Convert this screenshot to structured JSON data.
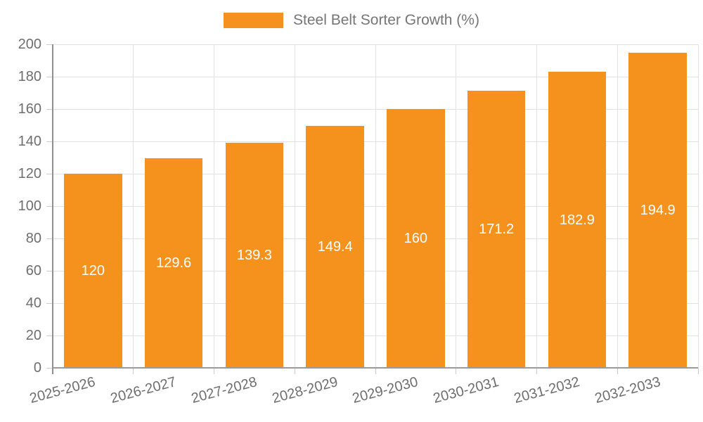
{
  "legend": {
    "label": "Steel Belt Sorter Growth (%)"
  },
  "chart_data": {
    "type": "bar",
    "title": "Steel Belt Sorter Growth (%)",
    "categories": [
      "2025-2026",
      "2026-2027",
      "2027-2028",
      "2028-2029",
      "2029-2030",
      "2030-2031",
      "2031-2032",
      "2032-2033"
    ],
    "series": [
      {
        "name": "Steel Belt Sorter Growth (%)",
        "values": [
          120,
          129.6,
          139.3,
          149.4,
          160,
          171.2,
          182.9,
          194.9
        ],
        "value_labels": [
          "120",
          "129.6",
          "139.3",
          "149.4",
          "160",
          "171.2",
          "182.9",
          "194.9"
        ]
      }
    ],
    "xlabel": "",
    "ylabel": "",
    "ylim": [
      0,
      200
    ],
    "yticks": [
      0,
      20,
      40,
      60,
      80,
      100,
      120,
      140,
      160,
      180,
      200
    ],
    "grid": true,
    "legend_position": "top-center",
    "value_labels_position": "inside-middle",
    "colors": {
      "bar": "#f5921e",
      "value_label": "#ffffff",
      "grid": "#e2e2e2",
      "axis": "#999999",
      "tick": "#cccccc",
      "tick_text": "#6e6e6e",
      "legend_text": "#757575"
    }
  }
}
